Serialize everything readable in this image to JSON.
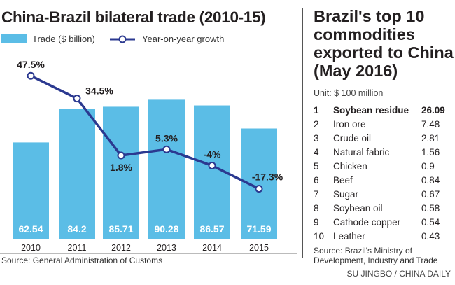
{
  "left": {
    "title": "China-Brazil bilateral trade (2010-15)",
    "source": "Source: General Administration of Customs"
  },
  "chart_data": {
    "type": "bar+line",
    "title": "China-Brazil bilateral trade (2010-15)",
    "categories": [
      "2010",
      "2011",
      "2012",
      "2013",
      "2014",
      "2015"
    ],
    "series": [
      {
        "name": "Trade ($ billion)",
        "type": "bar",
        "color": "#5bbde6",
        "values": [
          62.54,
          84.2,
          85.71,
          90.28,
          86.57,
          71.59
        ],
        "labels": [
          "62.54",
          "84.2",
          "85.71",
          "90.28",
          "86.57",
          "71.59"
        ]
      },
      {
        "name": "Year-on-year growth",
        "type": "line",
        "color": "#2b3990",
        "values": [
          47.5,
          34.5,
          1.8,
          5.3,
          -4,
          -17.3
        ],
        "labels": [
          "47.5%",
          "34.5%",
          "1.8%",
          "5.3%",
          "-4%",
          "-17.3%"
        ]
      }
    ],
    "legend": "top-left",
    "grid": false
  },
  "right": {
    "title": "Brazil's top 10 commodities exported to China (May 2016)",
    "unit": "Unit: $ 100 million",
    "rows": [
      {
        "rank": "1",
        "name": "Soybean residue",
        "value": "26.09"
      },
      {
        "rank": "2",
        "name": "Iron ore",
        "value": "7.48"
      },
      {
        "rank": "3",
        "name": "Crude oil",
        "value": "2.81"
      },
      {
        "rank": "4",
        "name": "Natural fabric",
        "value": "1.56"
      },
      {
        "rank": "5",
        "name": "Chicken",
        "value": "0.9"
      },
      {
        "rank": "6",
        "name": "Beef",
        "value": "0.84"
      },
      {
        "rank": "7",
        "name": "Sugar",
        "value": "0.67"
      },
      {
        "rank": "8",
        "name": "Soybean oil",
        "value": "0.58"
      },
      {
        "rank": "9",
        "name": "Cathode copper",
        "value": "0.54"
      },
      {
        "rank": "10",
        "name": "Leather",
        "value": "0.43"
      }
    ],
    "source": "Source: Brazil's Ministry of Development, Industry and Trade"
  },
  "credit": "SU JINGBO / CHINA DAILY"
}
